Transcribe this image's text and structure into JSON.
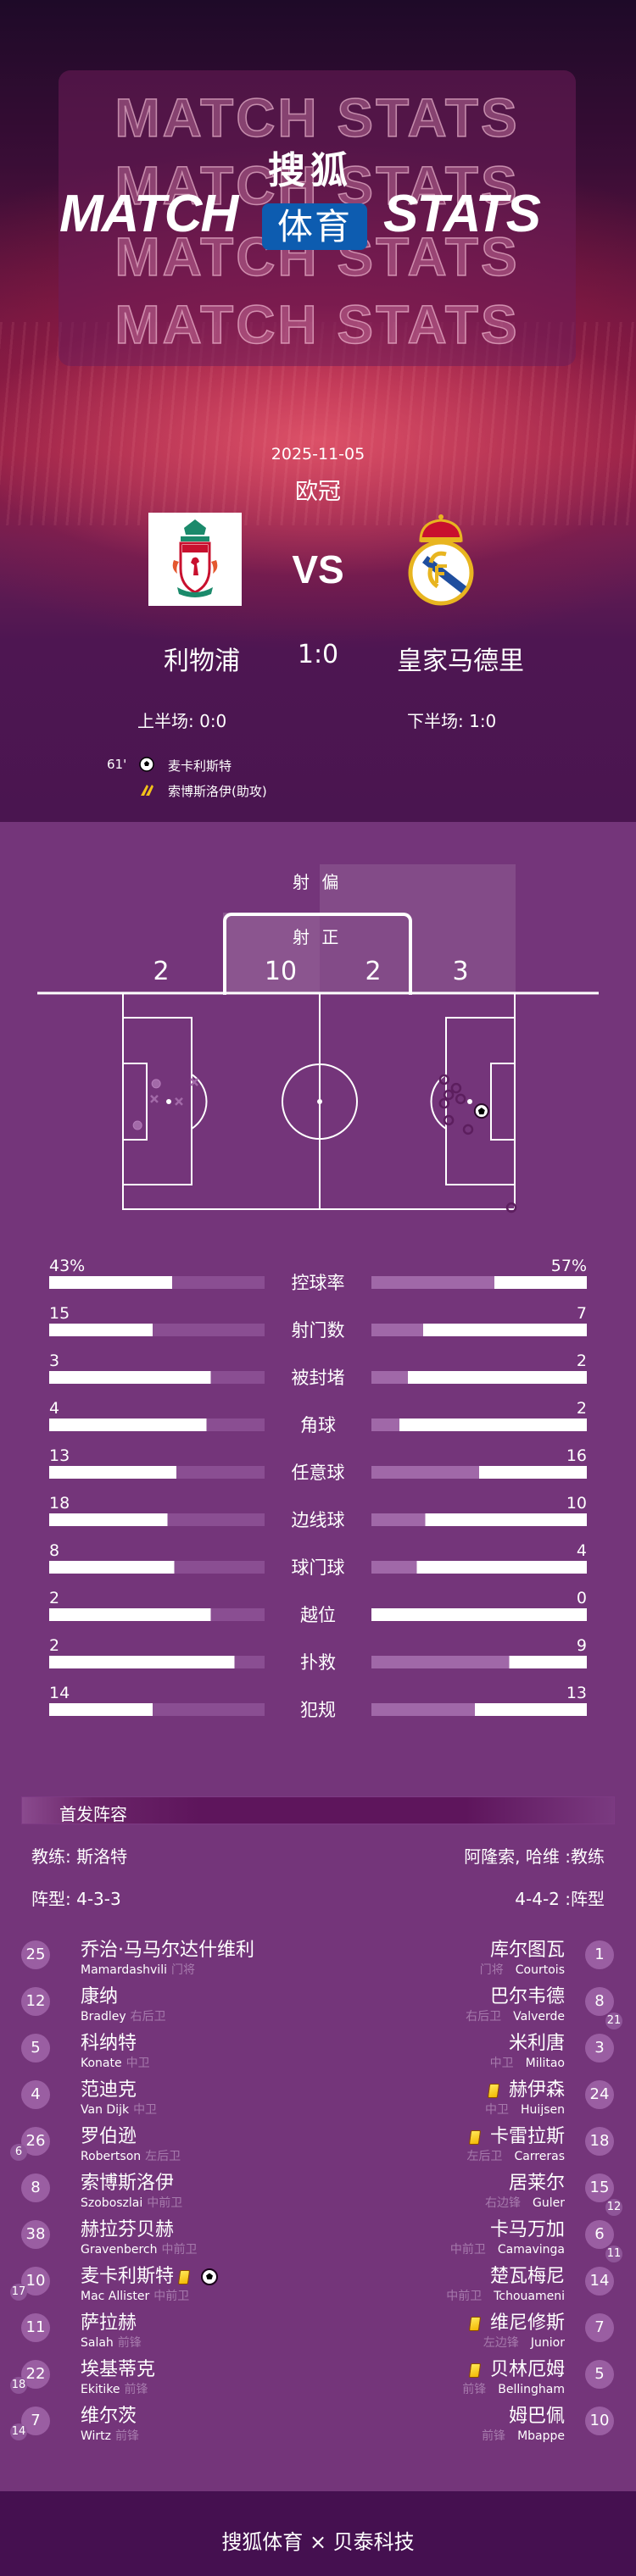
{
  "header": {
    "outline_text": "MATCH STATS",
    "title_left": "MATCH",
    "title_right": "STATS",
    "brand_top": "搜狐",
    "brand_box": "体育",
    "brand_box_color": "#0d5cb0"
  },
  "match": {
    "date": "2025-11-05",
    "competition": "欧冠",
    "vs": "VS",
    "home": {
      "name": "利物浦",
      "logo": "liverpool-crest"
    },
    "away": {
      "name": "皇家马德里",
      "logo": "real-madrid-crest"
    },
    "score": "1:0",
    "first_half": "上半场: 0:0",
    "second_half": "下半场: 1:0",
    "events": [
      {
        "minute": "61'",
        "icon": "goal-ball-icon",
        "text": "麦卡利斯特"
      },
      {
        "minute": "",
        "icon": "assist-boot-icon",
        "text": "索博斯洛伊(助攻)"
      }
    ]
  },
  "shots": {
    "off_target_label": "射 偏",
    "on_target_label": "射 正",
    "home_off": "2",
    "home_on": "10",
    "away_on": "2",
    "away_off": "3",
    "pitch_units": "meters (105 x 68)",
    "markers": [
      {
        "team": "home",
        "type": "circle",
        "x": 8.9,
        "y": 28.5
      },
      {
        "team": "home",
        "type": "circle",
        "x": 3.9,
        "y": 41.6
      },
      {
        "team": "home",
        "type": "cross",
        "x": 8.4,
        "y": 33.3
      },
      {
        "team": "home",
        "type": "cross",
        "x": 15.0,
        "y": 34.1
      },
      {
        "team": "home",
        "type": "cross",
        "x": 19.1,
        "y": 28.0
      },
      {
        "team": "away",
        "type": "circle",
        "x": 86.1,
        "y": 27.2
      },
      {
        "team": "away",
        "type": "circle",
        "x": 89.3,
        "y": 29.9
      },
      {
        "team": "away",
        "type": "circle",
        "x": 87.3,
        "y": 32.0
      },
      {
        "team": "away",
        "type": "circle",
        "x": 86.1,
        "y": 34.7
      },
      {
        "team": "away",
        "type": "circle",
        "x": 90.5,
        "y": 33.3
      },
      {
        "team": "away",
        "type": "circle",
        "x": 87.3,
        "y": 40.0
      },
      {
        "team": "away",
        "type": "circle",
        "x": 92.5,
        "y": 42.9
      },
      {
        "team": "away",
        "type": "circle",
        "x": 104.1,
        "y": 67.5
      },
      {
        "team": "away",
        "type": "goal",
        "x": 96.1,
        "y": 37.1
      }
    ]
  },
  "stats": [
    {
      "label": "控球率",
      "home": "43%",
      "away": "57%",
      "home_fill": 0.57,
      "away_fill": 0.43
    },
    {
      "label": "射门数",
      "home": "15",
      "away": "7",
      "home_fill": 0.48,
      "away_fill": 0.76
    },
    {
      "label": "被封堵",
      "home": "3",
      "away": "2",
      "home_fill": 0.75,
      "away_fill": 0.83
    },
    {
      "label": "角球",
      "home": "4",
      "away": "2",
      "home_fill": 0.73,
      "away_fill": 0.87
    },
    {
      "label": "任意球",
      "home": "13",
      "away": "16",
      "home_fill": 0.59,
      "away_fill": 0.5
    },
    {
      "label": "边线球",
      "home": "18",
      "away": "10",
      "home_fill": 0.55,
      "away_fill": 0.75
    },
    {
      "label": "球门球",
      "home": "8",
      "away": "4",
      "home_fill": 0.58,
      "away_fill": 0.79
    },
    {
      "label": "越位",
      "home": "2",
      "away": "0",
      "home_fill": 0.75,
      "away_fill": 1.0
    },
    {
      "label": "扑救",
      "home": "2",
      "away": "9",
      "home_fill": 0.86,
      "away_fill": 0.36
    },
    {
      "label": "犯规",
      "home": "14",
      "away": "13",
      "home_fill": 0.48,
      "away_fill": 0.52
    }
  ],
  "lineup": {
    "title": "首发阵容",
    "home_coach": "教练: 斯洛特",
    "away_coach": "阿隆索, 哈维 :教练",
    "home_formation": "阵型: 4-3-3",
    "away_formation": "4-4-2 :阵型",
    "home": [
      {
        "num": "25",
        "cn": "乔治·马马尔达什维利",
        "en": "Mamardashvili",
        "pos": "门将",
        "sub": "",
        "yellow": false,
        "goal": false
      },
      {
        "num": "12",
        "cn": "康纳",
        "en": "Bradley",
        "pos": "右后卫",
        "sub": "",
        "yellow": false,
        "goal": false
      },
      {
        "num": "5",
        "cn": "科纳特",
        "en": "Konate",
        "pos": "中卫",
        "sub": "",
        "yellow": false,
        "goal": false
      },
      {
        "num": "4",
        "cn": "范迪克",
        "en": "Van Dijk",
        "pos": "中卫",
        "sub": "",
        "yellow": false,
        "goal": false
      },
      {
        "num": "26",
        "cn": "罗伯逊",
        "en": "Robertson",
        "pos": "左后卫",
        "sub": "6",
        "yellow": false,
        "goal": false
      },
      {
        "num": "8",
        "cn": "索博斯洛伊",
        "en": "Szoboszlai",
        "pos": "中前卫",
        "sub": "",
        "yellow": false,
        "goal": false
      },
      {
        "num": "38",
        "cn": "赫拉芬贝赫",
        "en": "Gravenberch",
        "pos": "中前卫",
        "sub": "",
        "yellow": false,
        "goal": false
      },
      {
        "num": "10",
        "cn": "麦卡利斯特",
        "en": "Mac Allister",
        "pos": "中前卫",
        "sub": "17",
        "yellow": true,
        "goal": true
      },
      {
        "num": "11",
        "cn": "萨拉赫",
        "en": "Salah",
        "pos": "前锋",
        "sub": "",
        "yellow": false,
        "goal": false
      },
      {
        "num": "22",
        "cn": "埃基蒂克",
        "en": "Ekitike",
        "pos": "前锋",
        "sub": "18",
        "yellow": false,
        "goal": false
      },
      {
        "num": "7",
        "cn": "维尔茨",
        "en": "Wirtz",
        "pos": "前锋",
        "sub": "14",
        "yellow": false,
        "goal": false
      }
    ],
    "away": [
      {
        "num": "1",
        "cn": "库尔图瓦",
        "en": "Courtois",
        "pos": "门将",
        "sub": "",
        "yellow": false
      },
      {
        "num": "8",
        "cn": "巴尔韦德",
        "en": "Valverde",
        "pos": "右后卫",
        "sub": "21",
        "yellow": false
      },
      {
        "num": "3",
        "cn": "米利唐",
        "en": "Militao",
        "pos": "中卫",
        "sub": "",
        "yellow": false
      },
      {
        "num": "24",
        "cn": "赫伊森",
        "en": "Huijsen",
        "pos": "中卫",
        "sub": "",
        "yellow": true
      },
      {
        "num": "18",
        "cn": "卡雷拉斯",
        "en": "Carreras",
        "pos": "左后卫",
        "sub": "",
        "yellow": true
      },
      {
        "num": "15",
        "cn": "居莱尔",
        "en": "Guler",
        "pos": "右边锋",
        "sub": "12",
        "yellow": false
      },
      {
        "num": "6",
        "cn": "卡马万加",
        "en": "Camavinga",
        "pos": "中前卫",
        "sub": "11",
        "yellow": false
      },
      {
        "num": "14",
        "cn": "楚瓦梅尼",
        "en": "Tchouameni",
        "pos": "中前卫",
        "sub": "",
        "yellow": false
      },
      {
        "num": "7",
        "cn": "维尼修斯",
        "en": "Junior",
        "pos": "左边锋",
        "sub": "",
        "yellow": true
      },
      {
        "num": "5",
        "cn": "贝林厄姆",
        "en": "Bellingham",
        "pos": "前锋",
        "sub": "",
        "yellow": true
      },
      {
        "num": "10",
        "cn": "姆巴佩",
        "en": "Mbappe",
        "pos": "前锋",
        "sub": "",
        "yellow": false
      }
    ]
  },
  "footer": {
    "text": "搜狐体育 × 贝泰科技"
  },
  "colors": {
    "page_bg": "#74357a",
    "footer_bg": "#451050",
    "bar_track_home": "#8a4e92",
    "bar_track_away": "#a068a8",
    "yellow_card": "#f7c600"
  }
}
